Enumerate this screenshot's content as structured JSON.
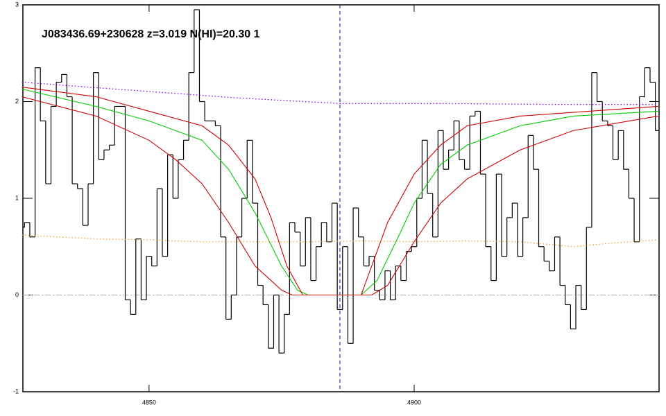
{
  "chart_data": {
    "type": "line",
    "title": "J083436.69+230628 z=3.019 N(HI)=20.30 1",
    "xlim": [
      4826.2,
      4946.2
    ],
    "ylim": [
      -1,
      3
    ],
    "xticks": [
      4850,
      4900
    ],
    "yticks": [
      -1,
      0,
      1,
      2,
      3
    ],
    "hlines": [
      {
        "value": 0,
        "color": "#aaaaaa",
        "style": "dashdot"
      }
    ],
    "vlines": [
      {
        "value": 4886,
        "color": "#0000cc",
        "style": "dashed"
      }
    ],
    "series": [
      {
        "color": "#000000",
        "style": "steps",
        "x": [
          4826,
          4827,
          4828,
          4829,
          4830,
          4831,
          4832,
          4833,
          4834,
          4835,
          4836,
          4837,
          4838,
          4839,
          4840,
          4841,
          4842,
          4843,
          4844,
          4845,
          4846,
          4847,
          4848,
          4849,
          4850,
          4851,
          4852,
          4853,
          4854,
          4855,
          4856,
          4857,
          4858,
          4859,
          4860,
          4861,
          4862,
          4863,
          4864,
          4865,
          4866,
          4867,
          4868,
          4869,
          4870,
          4871,
          4872,
          4873,
          4874,
          4875,
          4876,
          4877,
          4878,
          4879,
          4880,
          4881,
          4882,
          4883,
          4884,
          4885,
          4886,
          4887,
          4888,
          4889,
          4890,
          4891,
          4892,
          4893,
          4894,
          4895,
          4896,
          4897,
          4898,
          4899,
          4900,
          4901,
          4902,
          4903,
          4904,
          4905,
          4906,
          4907,
          4908,
          4909,
          4910,
          4911,
          4912,
          4913,
          4914,
          4915,
          4916,
          4917,
          4918,
          4919,
          4920,
          4921,
          4922,
          4923,
          4924,
          4925,
          4926,
          4927,
          4928,
          4929,
          4930,
          4931,
          4932,
          4933,
          4934,
          4935,
          4936,
          4937,
          4938,
          4939,
          4940,
          4941,
          4942,
          4943,
          4944,
          4945,
          4946
        ],
        "values": [
          0.7,
          0.75,
          0.6,
          2.35,
          1.8,
          1.15,
          1.95,
          2.2,
          2.28,
          2.05,
          1.15,
          1.1,
          0.72,
          1.15,
          2.3,
          1.4,
          1.5,
          1.55,
          1.95,
          1.95,
          -0.05,
          -0.2,
          0.58,
          -0.05,
          0.4,
          0.3,
          1.1,
          0.4,
          1.45,
          1.0,
          1.4,
          1.6,
          2.3,
          2.95,
          2.0,
          1.8,
          1.8,
          1.75,
          0.6,
          -0.25,
          0.0,
          0.6,
          1.0,
          1.6,
          0.95,
          0.1,
          -0.1,
          -0.55,
          0.0,
          -0.6,
          -0.2,
          0.75,
          0.65,
          0.3,
          0.8,
          0.15,
          0.5,
          0.75,
          0.55,
          0.95,
          -0.15,
          0.5,
          -0.5,
          0.9,
          0.6,
          0.3,
          0.4,
          0.05,
          -0.05,
          0.25,
          -0.05,
          0.3,
          0.15,
          0.45,
          0.5,
          1.0,
          1.6,
          1.05,
          0.6,
          1.7,
          1.3,
          1.5,
          1.8,
          1.4,
          1.3,
          1.85,
          1.9,
          1.25,
          0.5,
          0.15,
          1.25,
          0.4,
          0.8,
          0.95,
          0.4,
          0.8,
          1.65,
          1.3,
          0.5,
          0.35,
          0.25,
          0.6,
          0.1,
          -0.1,
          -0.35,
          0.1,
          -0.15,
          0.7,
          2.3,
          2.0,
          1.8,
          1.75,
          1.4,
          1.7,
          1.3,
          1.0,
          0.55,
          2.05,
          2.35,
          2.2,
          1.7
        ]
      },
      {
        "color": "#00cc00",
        "style": "solid",
        "x": [
          4826,
          4840,
          4850,
          4860,
          4865,
          4870,
          4875,
          4878,
          4880,
          4890,
          4893,
          4897,
          4900,
          4905,
          4910,
          4920,
          4930,
          4946
        ],
        "values": [
          2.13,
          1.95,
          1.8,
          1.6,
          1.3,
          0.85,
          0.3,
          0.05,
          0.0,
          0.0,
          0.15,
          0.6,
          0.95,
          1.35,
          1.55,
          1.75,
          1.85,
          1.9
        ]
      },
      {
        "color": "#cc0000",
        "style": "solid",
        "x": [
          4826,
          4840,
          4850,
          4860,
          4865,
          4870,
          4873,
          4876,
          4879,
          4890,
          4892,
          4895,
          4900,
          4905,
          4910,
          4920,
          4946
        ],
        "values": [
          2.15,
          2.05,
          1.9,
          1.75,
          1.55,
          1.2,
          0.8,
          0.3,
          0.0,
          0.0,
          0.3,
          0.75,
          1.25,
          1.55,
          1.75,
          1.85,
          1.95
        ]
      },
      {
        "color": "#cc0000",
        "style": "solid",
        "x": [
          4826,
          4840,
          4850,
          4855,
          4860,
          4865,
          4870,
          4875,
          4877,
          4892,
          4895,
          4900,
          4905,
          4910,
          4920,
          4930,
          4946
        ],
        "values": [
          2.05,
          1.85,
          1.6,
          1.4,
          1.15,
          0.75,
          0.3,
          0.05,
          0.0,
          0.0,
          0.1,
          0.55,
          0.95,
          1.2,
          1.5,
          1.7,
          1.85
        ]
      },
      {
        "color": "#8800ff",
        "style": "dotted",
        "x": [
          4826,
          4846,
          4866,
          4886,
          4906,
          4926,
          4946
        ],
        "values": [
          2.2,
          2.12,
          2.04,
          1.98,
          1.98,
          1.97,
          1.97
        ]
      },
      {
        "color": "#ff9933",
        "style": "dotted",
        "x": [
          4826,
          4833,
          4840,
          4850,
          4860,
          4870,
          4880,
          4890,
          4900,
          4910,
          4920,
          4930,
          4938,
          4946
        ],
        "values": [
          0.62,
          0.6,
          0.58,
          0.57,
          0.55,
          0.55,
          0.55,
          0.56,
          0.55,
          0.56,
          0.55,
          0.5,
          0.54,
          0.57
        ]
      }
    ]
  }
}
